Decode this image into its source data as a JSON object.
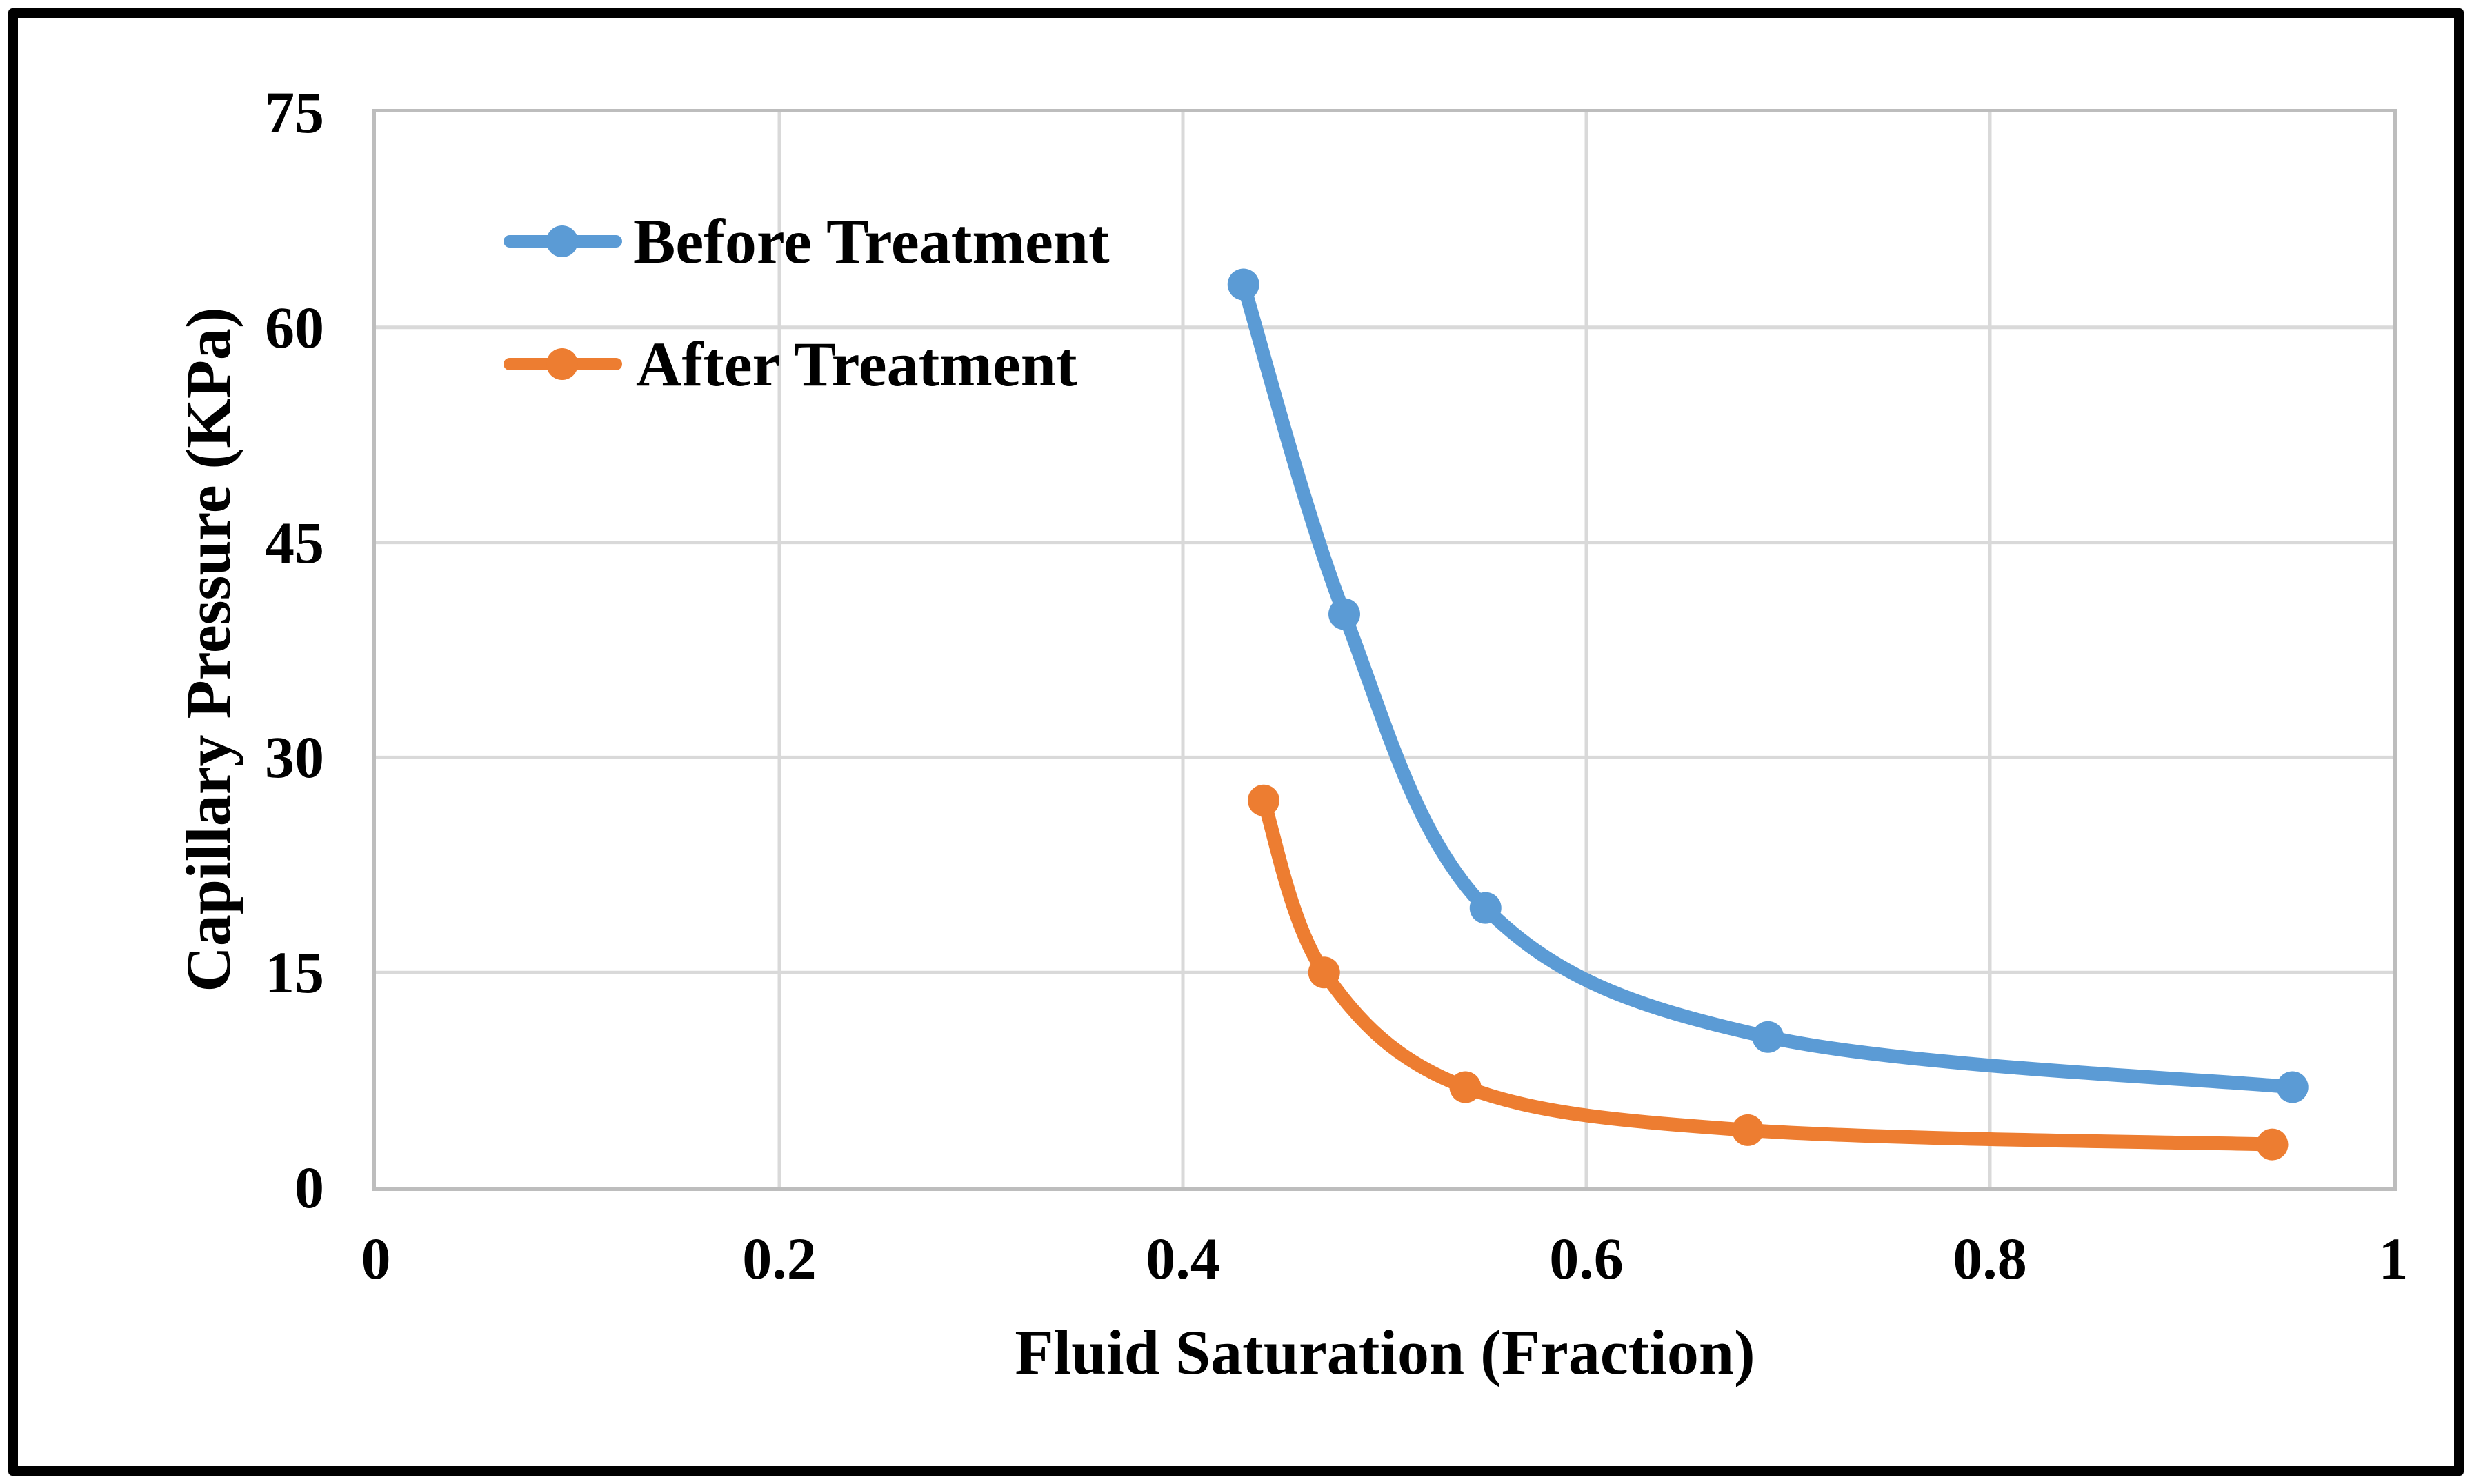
{
  "figure": {
    "background": "#FFFFFF",
    "border_color": "#000000"
  },
  "legend": {
    "position": "top-left-inside",
    "items": [
      {
        "label": "Before Treatment",
        "color": "#5B9BD5",
        "swatch": "line-with-circle-marker"
      },
      {
        "label": "After Treatment",
        "color": "#ED7D31",
        "swatch": "line-with-circle-marker"
      }
    ]
  },
  "chart_data": {
    "type": "line",
    "title": "",
    "xlabel": "Fluid Saturation (Fraction)",
    "ylabel": "Capillary Pressure (KPa)",
    "xlim": [
      0,
      1
    ],
    "ylim": [
      0,
      75
    ],
    "x_tick_values": [
      0,
      0.2,
      0.4,
      0.6,
      0.8,
      1
    ],
    "x_tick_labels": [
      "0",
      "0.2",
      "0.4",
      "0.6",
      "0.8",
      "1"
    ],
    "y_tick_values": [
      0,
      15,
      30,
      45,
      60,
      75
    ],
    "y_tick_labels": [
      "0",
      "15",
      "30",
      "45",
      "60",
      "75"
    ],
    "grid": true,
    "grid_color": "#D9D9D9",
    "axis_box_color": "#BDBDBD",
    "smooth_lines": true,
    "marker": "circle",
    "series": [
      {
        "name": "Before Treatment",
        "color": "#5B9BD5",
        "points": [
          [
            0.43,
            63
          ],
          [
            0.48,
            40
          ],
          [
            0.55,
            19.5
          ],
          [
            0.69,
            10.5
          ],
          [
            0.95,
            7
          ]
        ]
      },
      {
        "name": "After Treatment",
        "color": "#ED7D31",
        "points": [
          [
            0.44,
            27
          ],
          [
            0.47,
            15
          ],
          [
            0.54,
            7
          ],
          [
            0.68,
            4
          ],
          [
            0.94,
            3
          ]
        ]
      }
    ]
  }
}
